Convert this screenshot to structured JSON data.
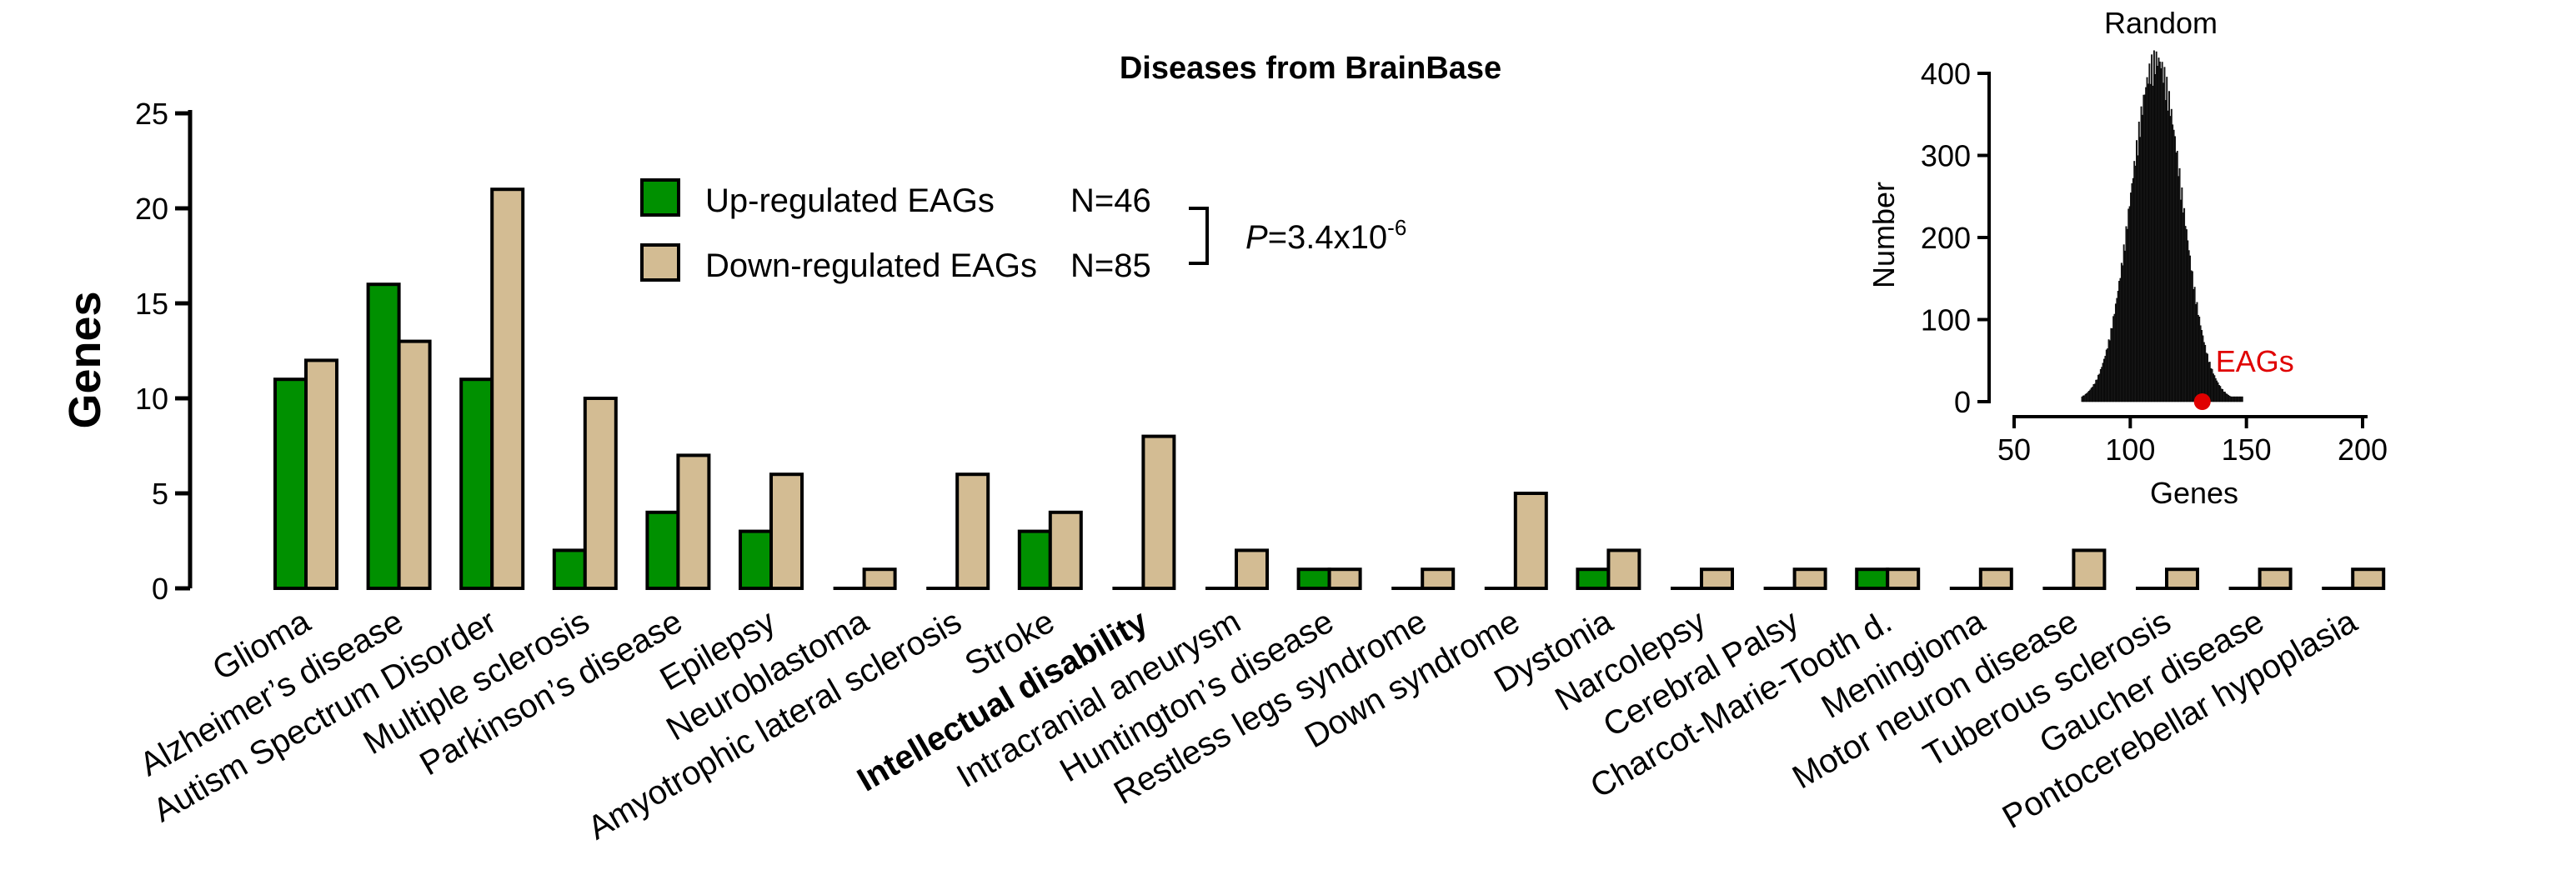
{
  "chart_data": [
    {
      "type": "bar",
      "title": "Diseases from BrainBase",
      "xlabel": "",
      "ylabel": "Genes",
      "ylim": [
        0,
        25
      ],
      "yticks": [
        0,
        5,
        10,
        15,
        20,
        25
      ],
      "categories": [
        "Glioma",
        "Alzheimer’s disease",
        "Autism Spectrum Disorder",
        "Multiple sclerosis",
        "Parkinson’s disease",
        "Epilepsy",
        "Neuroblastoma",
        "Amyotrophic lateral sclerosis",
        "Stroke",
        "Intellectual disability",
        "Intracranial aneurysm",
        "Huntington’s disease",
        "Restless legs syndrome",
        "Down syndrome",
        "Dystonia",
        "Narcolepsy",
        "Cerebral Palsy",
        "Charcot-Marie-Tooth d.",
        "Meningioma",
        "Motor neuron disease",
        "Tuberous sclerosis",
        "Gaucher disease",
        "Pontocerebellar hypoplasia"
      ],
      "bold_categories": [
        "Intellectual disability"
      ],
      "series": [
        {
          "name": "Up-regulated EAGs",
          "color": "#009000",
          "values": [
            11,
            16,
            11,
            2,
            4,
            3,
            0,
            0,
            3,
            0,
            0,
            1,
            0,
            0,
            1,
            0,
            0,
            1,
            0,
            0,
            0,
            0,
            0
          ]
        },
        {
          "name": "Down-regulated EAGs",
          "color": "#d3bc93",
          "values": [
            12,
            13,
            21,
            10,
            7,
            6,
            1,
            6,
            4,
            8,
            2,
            1,
            1,
            5,
            2,
            1,
            1,
            1,
            1,
            2,
            1,
            1,
            1
          ]
        }
      ],
      "legend": {
        "placement": "top-center",
        "entries": [
          {
            "label": "Up-regulated EAGs",
            "n": "N=46"
          },
          {
            "label": "Down-regulated EAGs",
            "n": "N=85"
          }
        ],
        "pvalue_italic": "P",
        "pvalue_text": "=3.4x10",
        "pvalue_exponent": "-6"
      }
    },
    {
      "type": "histogram",
      "title": "Random",
      "xlabel": "Genes",
      "ylabel": "Number",
      "xlim": [
        50,
        200
      ],
      "ylim": [
        0,
        400
      ],
      "xticks": [
        50,
        100,
        150,
        200
      ],
      "yticks": [
        0,
        100,
        200,
        300,
        400
      ],
      "color": "#1a1a1a",
      "distribution": {
        "mean": 111,
        "sd": 11,
        "peak": 430,
        "range": [
          79,
          148
        ]
      },
      "marker": {
        "label": "EAGs",
        "x": 131,
        "y": 0,
        "color": "#e00000"
      }
    }
  ]
}
